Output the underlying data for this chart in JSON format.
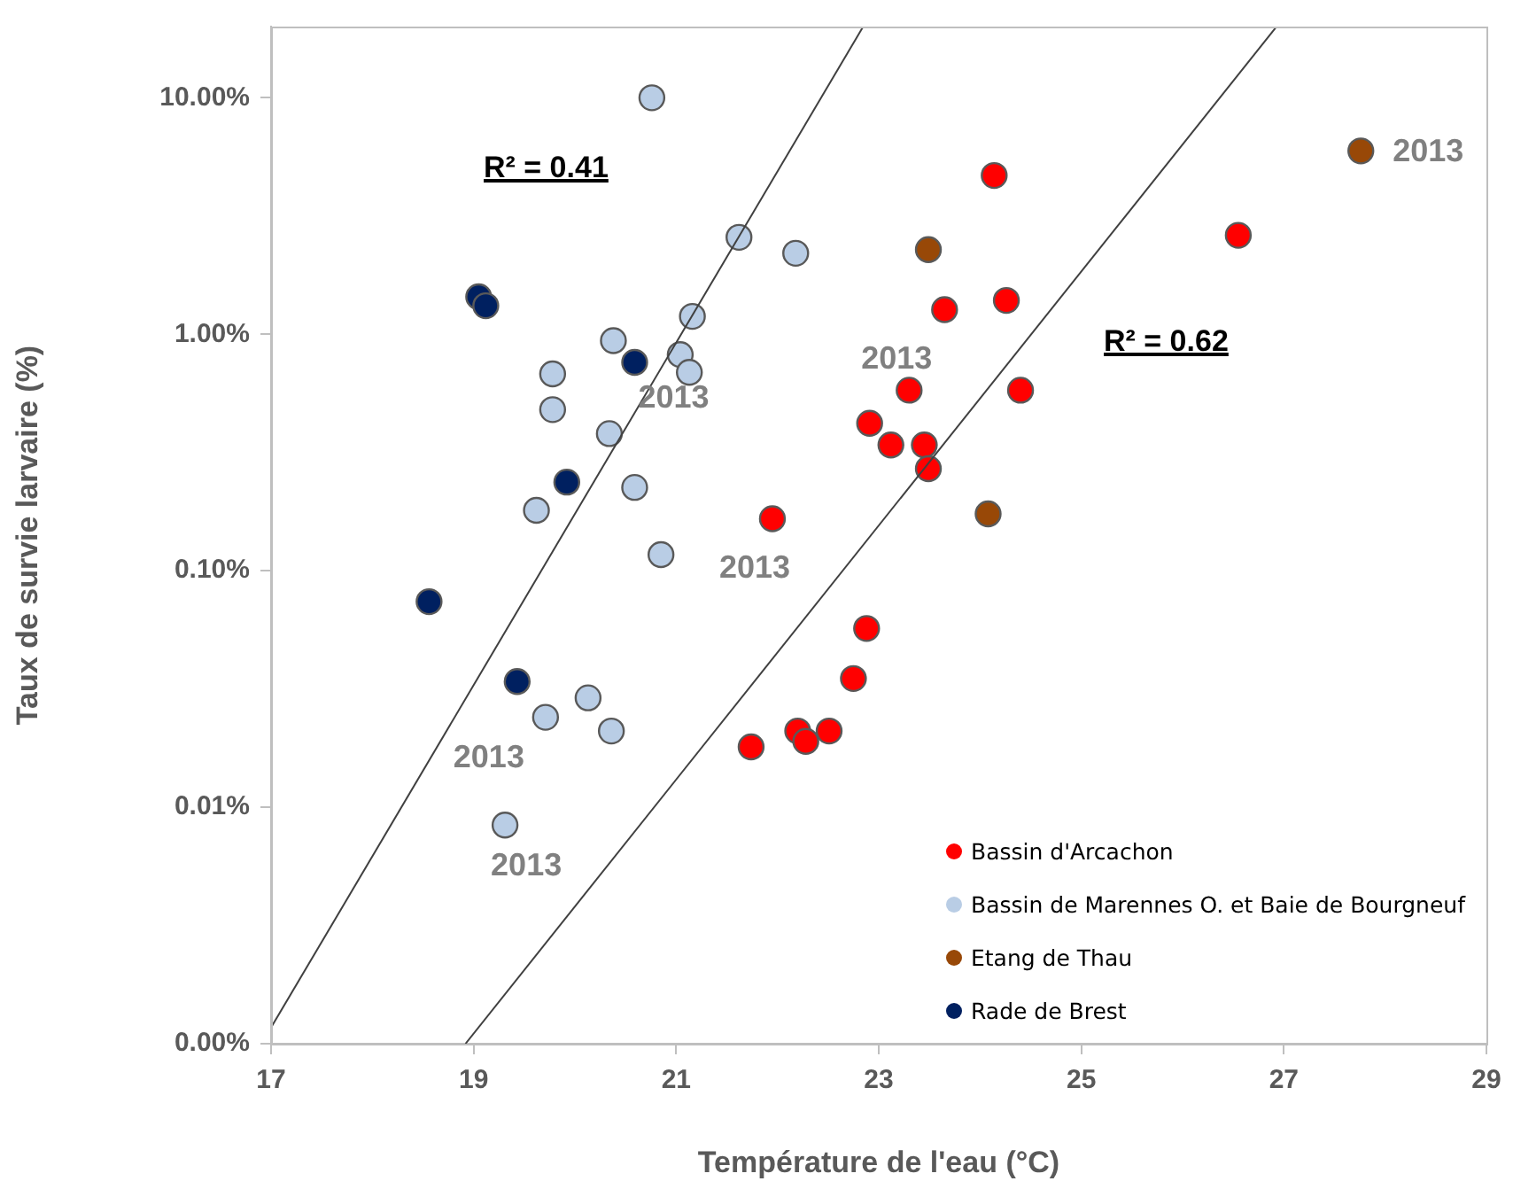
{
  "chart_data": {
    "type": "scatter",
    "xlabel": "Température de l'eau (°C)",
    "ylabel": "Taux de survie larvaire (%)",
    "xlim": [
      17,
      29
    ],
    "xticks": [
      17,
      19,
      21,
      23,
      25,
      27,
      29
    ],
    "ylim": [
      0.001,
      20
    ],
    "yticks": [
      {
        "value": 0.001,
        "label": "0.00%"
      },
      {
        "value": 0.01,
        "label": "0.01%"
      },
      {
        "value": 0.1,
        "label": "0.10%"
      },
      {
        "value": 1,
        "label": "1.00%"
      },
      {
        "value": 10,
        "label": "10.00%"
      }
    ],
    "log": "y",
    "grid": false,
    "legend": "bottom right",
    "marker": "circle",
    "series": [
      {
        "name": "Bassin d'Arcachon",
        "color": "#ff0000",
        "x": [
          24.14,
          26.55,
          23.65,
          24.26,
          23.3,
          24.4,
          22.91,
          23.12,
          23.45,
          23.49,
          21.95,
          22.88,
          22.75,
          22.2,
          22.28,
          22.51,
          21.74
        ],
        "values": [
          4.69,
          2.62,
          1.27,
          1.39,
          0.58,
          0.58,
          0.42,
          0.34,
          0.34,
          0.27,
          0.166,
          0.057,
          0.035,
          0.021,
          0.019,
          0.021,
          0.018
        ]
      },
      {
        "name": "Bassin de Marennes O. et Baie de Bourgneuf",
        "color": "#b9cde5",
        "x": [
          20.76,
          21.62,
          22.18,
          21.16,
          20.38,
          21.04,
          21.13,
          19.78,
          19.78,
          20.34,
          20.59,
          19.62,
          20.85,
          20.13,
          19.71,
          20.36,
          19.31
        ],
        "values": [
          10,
          2.57,
          2.2,
          1.19,
          0.94,
          0.82,
          0.69,
          0.68,
          0.48,
          0.38,
          0.225,
          0.18,
          0.117,
          0.029,
          0.024,
          0.021,
          0.0084
        ]
      },
      {
        "name": "Etang de Thau",
        "color": "#984807",
        "x": [
          27.76,
          23.49,
          24.08
        ],
        "values": [
          5.96,
          2.28,
          0.174
        ]
      },
      {
        "name": "Rade de Brest",
        "color": "#002060",
        "x": [
          18.56,
          19.05,
          19.12,
          20.59,
          19.92,
          19.43
        ],
        "values": [
          0.074,
          1.44,
          1.32,
          0.76,
          0.237,
          0.034
        ]
      },
      {
        "type": "line",
        "color": "#404040",
        "marker": "none",
        "x": [
          17,
          22.84
        ],
        "values": [
          0.00117,
          19.8
        ]
      },
      {
        "type": "line",
        "color": "#404040",
        "marker": "none",
        "x": [
          18.92,
          26.92
        ],
        "values": [
          0.001,
          19.8
        ]
      }
    ],
    "annotations": [
      "R² = 0.41",
      "R² = 0.62",
      {
        "text": "2013",
        "x": 20.59,
        "y": 0.76
      },
      {
        "text": "2013",
        "x": 21.95,
        "y": 0.166
      },
      {
        "text": "2013",
        "x": 23.3,
        "y": 0.58
      },
      {
        "text": "2013",
        "x": 19.71,
        "y": 0.024
      },
      {
        "text": "2013",
        "x": 19.31,
        "y": 0.0084
      },
      {
        "text": "2013",
        "x": 27.76,
        "y": 5.96
      }
    ]
  }
}
